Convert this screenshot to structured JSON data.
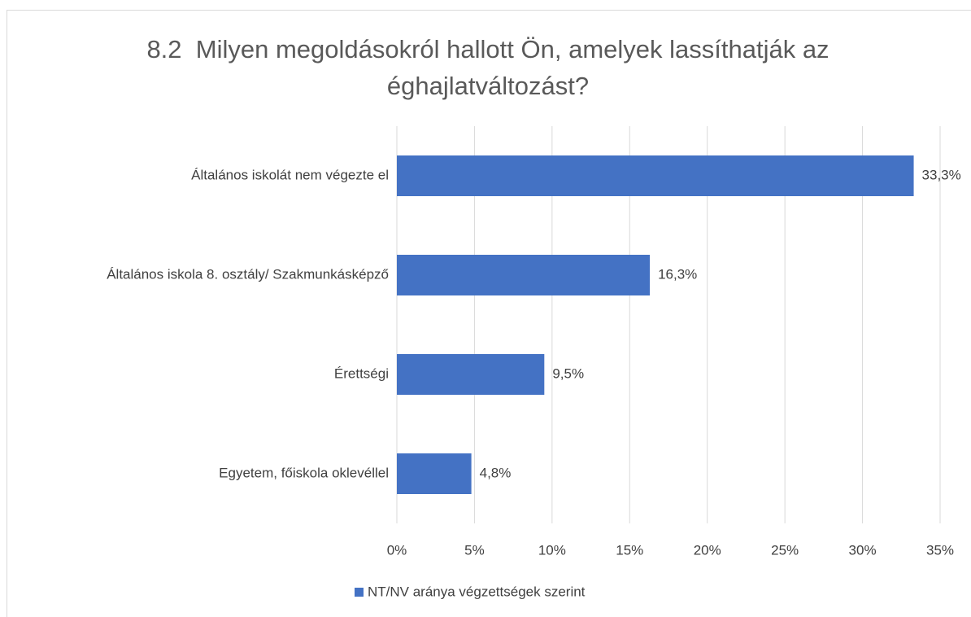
{
  "chart_data": {
    "type": "bar",
    "orientation": "horizontal",
    "title": "8.2  Milyen megoldásokról hallott Ön, amelyek lassíthatják az éghajlatváltozást?",
    "categories": [
      "Általános iskolát nem végezte el",
      "Általános iskola 8. osztály/ Szakmunkásképző",
      "Érettségi",
      "Egyetem, főiskola oklevéllel"
    ],
    "series": [
      {
        "name": "NT/NV aránya végzettségek szerint",
        "color": "#4472c4",
        "values": [
          33.3,
          16.3,
          9.5,
          4.8
        ],
        "value_labels": [
          "33,3%",
          "16,3%",
          "9,5%",
          "4,8%"
        ]
      }
    ],
    "xlim": [
      0,
      35
    ],
    "xticks": [
      {
        "value": 0,
        "label": "0%"
      },
      {
        "value": 5,
        "label": "5%"
      },
      {
        "value": 10,
        "label": "10%"
      },
      {
        "value": 15,
        "label": "15%"
      },
      {
        "value": 20,
        "label": "20%"
      },
      {
        "value": 25,
        "label": "25%"
      },
      {
        "value": 30,
        "label": "30%"
      },
      {
        "value": 35,
        "label": "35%"
      }
    ],
    "grid": true,
    "legend": "bottom"
  }
}
